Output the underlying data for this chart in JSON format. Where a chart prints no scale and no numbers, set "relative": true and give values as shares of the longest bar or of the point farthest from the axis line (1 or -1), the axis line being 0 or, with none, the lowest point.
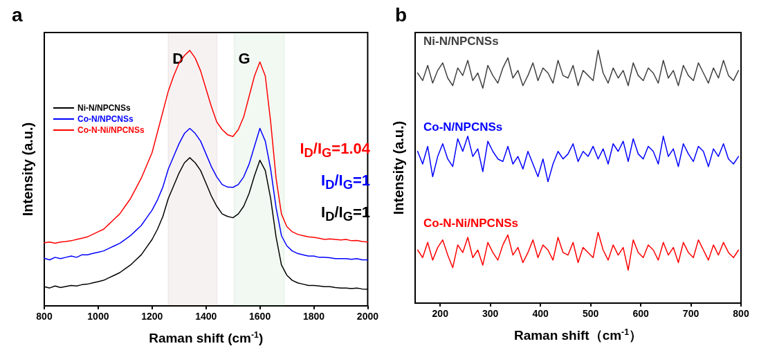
{
  "chart_data": [
    {
      "type": "line",
      "title": "a",
      "xlabel": "Raman shift (cm$^{-1}$)",
      "ylabel": "Intensity (a.u.)",
      "relative": true,
      "legend": "top left",
      "marker": "none",
      "line_style": "solid",
      "xlim": [
        800,
        2000
      ],
      "xticks": [
        800,
        1000,
        1200,
        1400,
        1600,
        1800,
        2000
      ],
      "x": [
        800,
        820,
        840,
        860,
        880,
        900,
        920,
        940,
        960,
        980,
        1000,
        1020,
        1040,
        1060,
        1080,
        1100,
        1120,
        1140,
        1160,
        1180,
        1200,
        1220,
        1240,
        1260,
        1280,
        1300,
        1320,
        1340,
        1360,
        1380,
        1400,
        1420,
        1440,
        1460,
        1480,
        1500,
        1520,
        1540,
        1560,
        1580,
        1600,
        1620,
        1640,
        1660,
        1680,
        1700,
        1720,
        1740,
        1760,
        1780,
        1800,
        1820,
        1840,
        1860,
        1880,
        1900,
        1920,
        1940,
        1960,
        1980,
        2000
      ],
      "series": [
        {
          "name": "Ni-N/NPCNSs",
          "color": "#000000",
          "values": [
            0.075,
            0.07,
            0.078,
            0.072,
            0.076,
            0.08,
            0.078,
            0.083,
            0.085,
            0.09,
            0.095,
            0.1,
            0.11,
            0.12,
            0.13,
            0.145,
            0.16,
            0.18,
            0.2,
            0.23,
            0.26,
            0.3,
            0.35,
            0.42,
            0.47,
            0.52,
            0.56,
            0.58,
            0.56,
            0.53,
            0.48,
            0.43,
            0.39,
            0.36,
            0.35,
            0.345,
            0.36,
            0.39,
            0.44,
            0.51,
            0.57,
            0.53,
            0.42,
            0.27,
            0.16,
            0.12,
            0.1,
            0.09,
            0.085,
            0.08,
            0.08,
            0.078,
            0.075,
            0.075,
            0.072,
            0.07,
            0.07,
            0.068,
            0.07,
            0.066,
            0.065
          ]
        },
        {
          "name": "Co-N/NPCNSs",
          "color": "#0000ff",
          "values": [
            0.186,
            0.18,
            0.19,
            0.185,
            0.19,
            0.195,
            0.19,
            0.2,
            0.2,
            0.205,
            0.21,
            0.215,
            0.225,
            0.235,
            0.245,
            0.26,
            0.275,
            0.295,
            0.315,
            0.345,
            0.375,
            0.415,
            0.465,
            0.535,
            0.585,
            0.635,
            0.675,
            0.695,
            0.675,
            0.645,
            0.595,
            0.545,
            0.505,
            0.475,
            0.465,
            0.464,
            0.475,
            0.505,
            0.555,
            0.625,
            0.695,
            0.645,
            0.535,
            0.385,
            0.275,
            0.235,
            0.215,
            0.205,
            0.2,
            0.195,
            0.195,
            0.19,
            0.19,
            0.188,
            0.185,
            0.185,
            0.185,
            0.182,
            0.185,
            0.18,
            0.18
          ]
        },
        {
          "name": "Co-N-Ni/NPCNSs",
          "color": "#ff0000",
          "values": [
            0.247,
            0.25,
            0.245,
            0.25,
            0.252,
            0.255,
            0.26,
            0.265,
            0.27,
            0.28,
            0.29,
            0.3,
            0.32,
            0.34,
            0.36,
            0.39,
            0.42,
            0.46,
            0.5,
            0.55,
            0.6,
            0.68,
            0.76,
            0.84,
            0.9,
            0.95,
            0.98,
            1.0,
            0.97,
            0.92,
            0.85,
            0.78,
            0.72,
            0.69,
            0.67,
            0.663,
            0.69,
            0.74,
            0.82,
            0.9,
            0.955,
            0.9,
            0.72,
            0.5,
            0.36,
            0.31,
            0.29,
            0.28,
            0.275,
            0.27,
            0.268,
            0.265,
            0.26,
            0.262,
            0.26,
            0.258,
            0.26,
            0.255,
            0.256,
            0.252,
            0.25
          ]
        }
      ],
      "bands": [
        {
          "axis": "x",
          "from": 1260,
          "to": 1440,
          "label": "D",
          "color": "#7f1f1f"
        },
        {
          "axis": "x",
          "from": 1505,
          "to": 1690,
          "label": "G",
          "color": "#2a8a2a"
        }
      ],
      "annotations": [
        "I$_{D}$/I$_{G}$=1.04",
        "I$_{D}$/I$_{G}$=1",
        "I$_{D}$/I$_{G}$=1"
      ]
    },
    {
      "type": "line",
      "title": "b",
      "xlabel": "Raman shift（cm$^{-1}$）",
      "ylabel": "Intensity (a.u.)",
      "relative": true,
      "marker": "none",
      "line_style": "solid",
      "xlim": [
        150,
        800
      ],
      "xticks": [
        200,
        300,
        400,
        500,
        600,
        700,
        800
      ],
      "x": [
        155,
        165,
        175,
        185,
        195,
        205,
        215,
        225,
        235,
        245,
        255,
        265,
        275,
        285,
        295,
        305,
        315,
        325,
        335,
        345,
        355,
        365,
        375,
        385,
        395,
        405,
        415,
        425,
        435,
        445,
        455,
        465,
        475,
        485,
        495,
        505,
        515,
        525,
        535,
        545,
        555,
        565,
        575,
        585,
        595,
        605,
        615,
        625,
        635,
        645,
        655,
        665,
        675,
        685,
        695,
        705,
        715,
        725,
        735,
        745,
        755,
        765,
        775,
        785,
        795
      ],
      "series": [
        {
          "name": "Ni-N/NPCNSs",
          "color": "#404040",
          "values": [
            0.91,
            0.88,
            0.94,
            0.87,
            0.92,
            0.95,
            0.89,
            0.86,
            0.93,
            0.9,
            0.96,
            0.88,
            0.91,
            0.85,
            0.94,
            0.9,
            0.87,
            0.93,
            0.97,
            0.89,
            0.92,
            0.86,
            0.9,
            0.95,
            0.88,
            0.93,
            0.91,
            0.87,
            0.96,
            0.9,
            0.89,
            0.94,
            0.86,
            0.92,
            0.9,
            0.88,
            1.0,
            0.91,
            0.87,
            0.93,
            0.89,
            0.92,
            0.86,
            0.95,
            0.9,
            0.88,
            0.93,
            0.91,
            0.87,
            0.96,
            0.89,
            0.92,
            0.86,
            0.94,
            0.9,
            0.88,
            0.95,
            0.91,
            0.87,
            0.93,
            0.89,
            0.96,
            0.9,
            0.88,
            0.92
          ]
        },
        {
          "name": "Co-N/NPCNSs",
          "color": "#0000ff",
          "values": [
            0.6,
            0.55,
            0.62,
            0.5,
            0.58,
            0.63,
            0.57,
            0.54,
            0.65,
            0.6,
            0.66,
            0.58,
            0.61,
            0.52,
            0.64,
            0.6,
            0.57,
            0.56,
            0.62,
            0.55,
            0.58,
            0.53,
            0.6,
            0.55,
            0.5,
            0.57,
            0.48,
            0.55,
            0.6,
            0.57,
            0.59,
            0.63,
            0.56,
            0.6,
            0.58,
            0.62,
            0.57,
            0.61,
            0.55,
            0.63,
            0.6,
            0.64,
            0.56,
            0.65,
            0.59,
            0.57,
            0.62,
            0.6,
            0.55,
            0.66,
            0.58,
            0.61,
            0.54,
            0.63,
            0.59,
            0.56,
            0.62,
            0.6,
            0.54,
            0.61,
            0.58,
            0.63,
            0.57,
            0.55,
            0.58
          ]
        },
        {
          "name": "Co-N-Ni/NPCNSs",
          "color": "#ff0000",
          "values": [
            0.21,
            0.18,
            0.24,
            0.17,
            0.22,
            0.25,
            0.19,
            0.14,
            0.23,
            0.2,
            0.26,
            0.18,
            0.21,
            0.15,
            0.24,
            0.2,
            0.17,
            0.23,
            0.27,
            0.19,
            0.22,
            0.16,
            0.2,
            0.25,
            0.18,
            0.23,
            0.21,
            0.17,
            0.26,
            0.2,
            0.19,
            0.24,
            0.16,
            0.22,
            0.2,
            0.18,
            0.28,
            0.21,
            0.17,
            0.23,
            0.19,
            0.22,
            0.13,
            0.25,
            0.2,
            0.18,
            0.23,
            0.21,
            0.17,
            0.24,
            0.19,
            0.22,
            0.16,
            0.24,
            0.2,
            0.18,
            0.25,
            0.21,
            0.17,
            0.23,
            0.19,
            0.24,
            0.2,
            0.18,
            0.21
          ]
        }
      ]
    }
  ]
}
